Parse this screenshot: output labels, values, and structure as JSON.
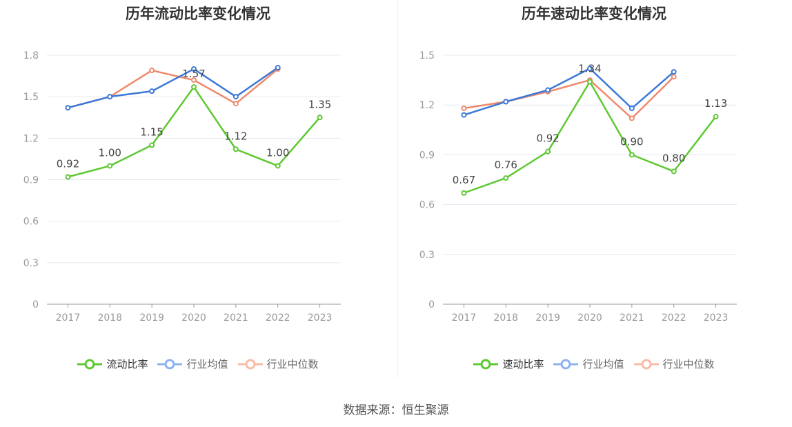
{
  "source": "数据来源：恒生聚源",
  "colors": {
    "main": "#5DC930",
    "avg": "#3C78D8",
    "median": "#F0896B",
    "avg_legend": "#8FB1EE",
    "median_legend": "#F7BBA6"
  },
  "chart_data": [
    {
      "type": "line",
      "title": "历年流动比率变化情况",
      "categories": [
        "2017",
        "2018",
        "2019",
        "2020",
        "2021",
        "2022",
        "2023"
      ],
      "ylim": [
        0,
        1.8
      ],
      "yticks": [
        "0",
        "0.3",
        "0.6",
        "0.9",
        "1.2",
        "1.5",
        "1.8"
      ],
      "grid": true,
      "legend_position": "bottom",
      "series": [
        {
          "name": "流动比率",
          "values": [
            0.92,
            1.0,
            1.15,
            1.57,
            1.12,
            1.0,
            1.35
          ],
          "labels": [
            "0.92",
            "1.00",
            "1.15",
            "1.57",
            "1.12",
            "1.00",
            "1.35"
          ]
        },
        {
          "name": "行业均值",
          "values": [
            1.42,
            1.5,
            1.54,
            1.7,
            1.5,
            1.71,
            null
          ]
        },
        {
          "name": "行业中位数",
          "values": [
            1.42,
            1.5,
            1.69,
            1.62,
            1.45,
            1.7,
            null
          ]
        }
      ]
    },
    {
      "type": "line",
      "title": "历年速动比率变化情况",
      "categories": [
        "2017",
        "2018",
        "2019",
        "2020",
        "2021",
        "2022",
        "2023"
      ],
      "ylim": [
        0,
        1.5
      ],
      "yticks": [
        "0",
        "0.3",
        "0.6",
        "0.9",
        "1.2",
        "1.5"
      ],
      "grid": true,
      "legend_position": "bottom",
      "series": [
        {
          "name": "速动比率",
          "values": [
            0.67,
            0.76,
            0.92,
            1.34,
            0.9,
            0.8,
            1.13
          ],
          "labels": [
            "0.67",
            "0.76",
            "0.92",
            "1.34",
            "0.90",
            "0.80",
            "1.13"
          ]
        },
        {
          "name": "行业均值",
          "values": [
            1.14,
            1.22,
            1.29,
            1.42,
            1.18,
            1.4,
            null
          ]
        },
        {
          "name": "行业中位数",
          "values": [
            1.18,
            1.22,
            1.28,
            1.35,
            1.12,
            1.37,
            null
          ]
        }
      ]
    }
  ]
}
